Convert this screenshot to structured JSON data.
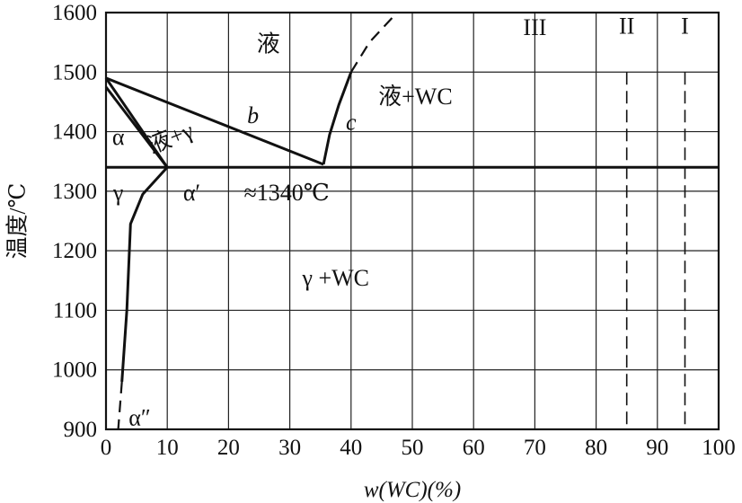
{
  "chart_data": {
    "type": "line",
    "title": "",
    "xlabel": "w(WC)(%)",
    "ylabel": "温度/℃",
    "xlim": [
      0,
      100
    ],
    "ylim": [
      900,
      1600
    ],
    "x_ticks": [
      "0",
      "10",
      "20",
      "30",
      "40",
      "50",
      "60",
      "70",
      "80",
      "90",
      "100"
    ],
    "y_ticks": [
      "900",
      "1000",
      "1100",
      "1200",
      "1300",
      "1400",
      "1500",
      "1600"
    ],
    "x_tick_values": [
      0,
      10,
      20,
      30,
      40,
      50,
      60,
      70,
      80,
      90,
      100
    ],
    "y_tick_values": [
      900,
      1000,
      1100,
      1200,
      1300,
      1400,
      1500,
      1600
    ],
    "grid": true,
    "eutectic_temperature": 1340,
    "series": [
      {
        "style": "solid",
        "points": [
          [
            0,
            1490
          ],
          [
            35.5,
            1345
          ]
        ]
      },
      {
        "style": "solid",
        "points": [
          [
            0,
            1490
          ],
          [
            10,
            1340
          ]
        ]
      },
      {
        "style": "solid",
        "points": [
          [
            0,
            1475
          ],
          [
            10,
            1340
          ]
        ]
      },
      {
        "style": "solid",
        "points": [
          [
            0,
            1340
          ],
          [
            100,
            1340
          ]
        ]
      },
      {
        "style": "solid",
        "points": [
          [
            35.5,
            1345
          ],
          [
            36.5,
            1395
          ],
          [
            38,
            1445
          ],
          [
            40,
            1500
          ]
        ]
      },
      {
        "style": "dashed",
        "points": [
          [
            40,
            1500
          ],
          [
            43,
            1550
          ],
          [
            47.5,
            1600
          ]
        ]
      },
      {
        "style": "solid",
        "points": [
          [
            10,
            1340
          ],
          [
            6,
            1295
          ],
          [
            4,
            1245
          ],
          [
            3.4,
            1100
          ],
          [
            2.6,
            980
          ]
        ]
      },
      {
        "style": "dashed",
        "points": [
          [
            2.6,
            980
          ],
          [
            2,
            900
          ]
        ]
      },
      {
        "style": "dashed",
        "points": [
          [
            85,
            1500
          ],
          [
            85,
            900
          ]
        ]
      },
      {
        "style": "dashed",
        "points": [
          [
            94.5,
            1500
          ],
          [
            94.5,
            900
          ]
        ]
      }
    ],
    "annotations": [
      {
        "text": "液",
        "x": 26.5,
        "y": 1548
      },
      {
        "text": "液+WC",
        "x": 50.5,
        "y": 1460
      },
      {
        "text": "b",
        "x": 24,
        "y": 1428
      },
      {
        "text": "c",
        "x": 40,
        "y": 1417
      },
      {
        "text": "液+γ",
        "x": 10.5,
        "y": 1390
      },
      {
        "text": "α",
        "x": 2,
        "y": 1392
      },
      {
        "text": "γ",
        "x": 2,
        "y": 1298
      },
      {
        "text": "α′",
        "x": 14,
        "y": 1298
      },
      {
        "text": "≈1340℃",
        "x": 29.5,
        "y": 1298
      },
      {
        "text": "γ +WC",
        "x": 37.5,
        "y": 1155
      },
      {
        "text": "α″",
        "x": 5.5,
        "y": 920
      },
      {
        "text": "III",
        "x": 70,
        "y": 1576
      },
      {
        "text": "II",
        "x": 85,
        "y": 1578
      },
      {
        "text": "I",
        "x": 94.5,
        "y": 1578
      }
    ]
  }
}
